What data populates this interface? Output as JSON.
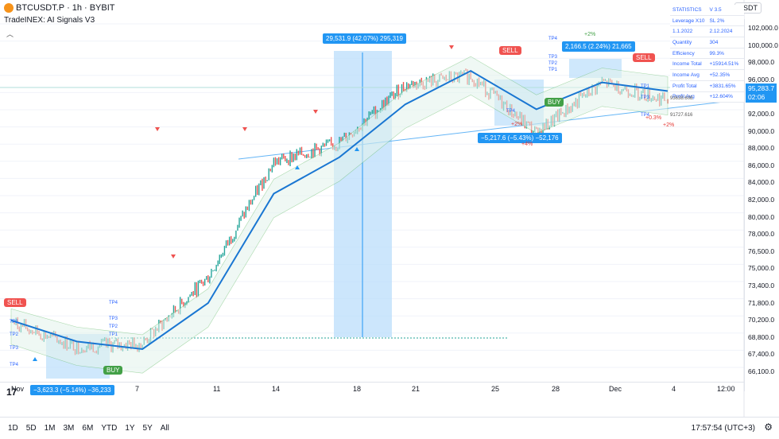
{
  "header": {
    "symbol": "BTCUSDT.P",
    "interval": "1h",
    "exchange": "BYBIT",
    "separator": "·",
    "indicator": "TradeINEX: AI Signals V3",
    "currency": "USDT"
  },
  "price_axis": {
    "ticks": [
      "102,000.0",
      "100,000.0",
      "98,000.0",
      "96,000.0",
      "94,000.0",
      "92,000.0",
      "90,000.0",
      "88,000.0",
      "86,000.0",
      "84,000.0",
      "82,000.0",
      "80,000.0",
      "78,000.0",
      "76,500.0",
      "75,000.0",
      "73,400.0",
      "71,800.0",
      "70,200.0",
      "68,800.0",
      "67,400.0",
      "66,100.0"
    ],
    "current_price": "95,283.7",
    "countdown": "02:06"
  },
  "time_axis": {
    "labels": [
      "Nov",
      "4",
      "7",
      "11",
      "14",
      "18",
      "21",
      "25",
      "28",
      "Dec",
      "4",
      "12:00"
    ]
  },
  "bottom": {
    "ranges": [
      "1D",
      "5D",
      "1M",
      "3M",
      "6M",
      "YTD",
      "1Y",
      "5Y",
      "All"
    ],
    "clock": "17:57:54 (UTC+3)"
  },
  "stats": {
    "rows": [
      [
        "STATISTICS",
        "V 3.5"
      ],
      [
        "Leverage X10",
        "SL 2%"
      ],
      [
        "1.1.2022",
        "2.12.2024"
      ],
      [
        "Quantity",
        "304"
      ],
      [
        "Efficiency",
        "99.3%"
      ],
      [
        "Income Total",
        "+15914.51%"
      ],
      [
        "Income Avg",
        "+52.35%"
      ],
      [
        "Profit Total",
        "+3831.65%"
      ],
      [
        "Profit Avg",
        "+12.604%"
      ]
    ]
  },
  "signals": {
    "sell1": "SELL",
    "buy1": "BUY",
    "sell2": "SELL",
    "buy2": "BUY",
    "sell3": "SELL"
  },
  "measures": {
    "m1": "−3,623.3 (−5.14%) −36,233",
    "m2": "29,531.9 (42.07%) 295,319",
    "m3": "−5,217.6 (−5.43%) −52,176",
    "m4": "2,166.5 (2.24%) 21,665"
  },
  "tp_labels": {
    "tp4": "TP4",
    "tp3": "TP3",
    "tp2": "TP2",
    "tp1": "TP1"
  },
  "percents": {
    "p2a": "+2%",
    "p4": "+4%",
    "p2b": "+2%",
    "p2c": "+2%",
    "p03": "+0.3%"
  },
  "right_labels": {
    "r1": "93638.608",
    "r2": "91727.616"
  },
  "colors": {
    "up": "#26a69a",
    "down": "#ef5350",
    "ma_up": "#1976d2",
    "ma_down": "#e53935",
    "sell": "#f05350",
    "buy": "#43a047",
    "band_green": "#e3f4ec",
    "band_red": "#fde7e7",
    "measure": "#bbdefb"
  },
  "chart_data": {
    "type": "line",
    "xlabel": "",
    "ylabel": "",
    "ylim": [
      65600,
      103400
    ],
    "x": [
      "Nov",
      "4",
      "7",
      "11",
      "14",
      "18",
      "21",
      "25",
      "28",
      "Dec",
      "4"
    ],
    "series": [
      {
        "values": [
          71800,
          69200,
          69600,
          76500,
          88500,
          90500,
          96500,
          97500,
          91500,
          96800,
          94900
        ]
      },
      {
        "values": [
          72000,
          69800,
          69000,
          73800,
          85200,
          89000,
          94500,
          98000,
          94000,
          96800,
          95900
        ]
      }
    ]
  }
}
